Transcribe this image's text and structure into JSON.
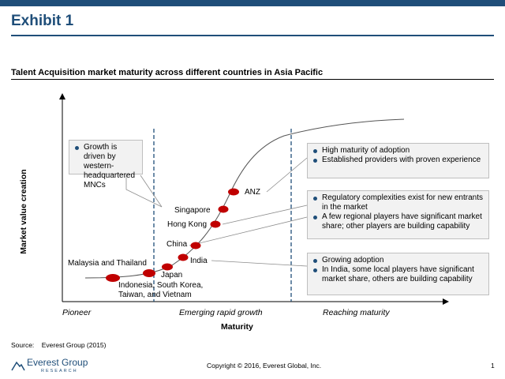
{
  "header": {
    "title": "Exhibit 1"
  },
  "chart": {
    "subtitle": "Talent Acquisition market maturity across different countries in Asia Pacific",
    "y_axis_label": "Market value creation",
    "x_axis_label": "Maturity",
    "stages": [
      "Pioneer",
      "Emerging rapid growth",
      "Reaching maturity"
    ],
    "points": [
      "Malaysia and Thailand",
      "Indonesia, South Korea, Taiwan, and Vietnam",
      "Japan",
      "India",
      "China",
      "Hong Kong",
      "Singapore",
      "ANZ"
    ],
    "point_labels": {
      "malaysia": "Malaysia and Thailand",
      "indonesia_line1": "Indonesia, South Korea,",
      "indonesia_line2": "Taiwan, and Vietnam",
      "japan": "Japan",
      "india": "India",
      "china": "China",
      "hongkong": "Hong Kong",
      "singapore": "Singapore",
      "anz": "ANZ"
    },
    "callouts": {
      "pioneer": [
        "Growth is driven by western-headquartered MNCs"
      ],
      "maturity": [
        "High maturity of adoption",
        "Established providers with proven experience"
      ],
      "regulatory": [
        "Regulatory complexities exist for new entrants in the market",
        "A few regional players have significant market share; other players are building capability"
      ],
      "india": [
        "Growing adoption",
        "In India, some local players have significant market share, others are building capability"
      ]
    },
    "colors": {
      "brand": "#1f4e79",
      "point": "#c00000"
    }
  },
  "footer": {
    "source_label": "Source:",
    "source_text": "Everest Group (2015)",
    "copyright": "Copyright © 2016, Everest Global, Inc.",
    "page": "1",
    "logo_name": "Everest Group",
    "logo_sub": "RESEARCH"
  }
}
